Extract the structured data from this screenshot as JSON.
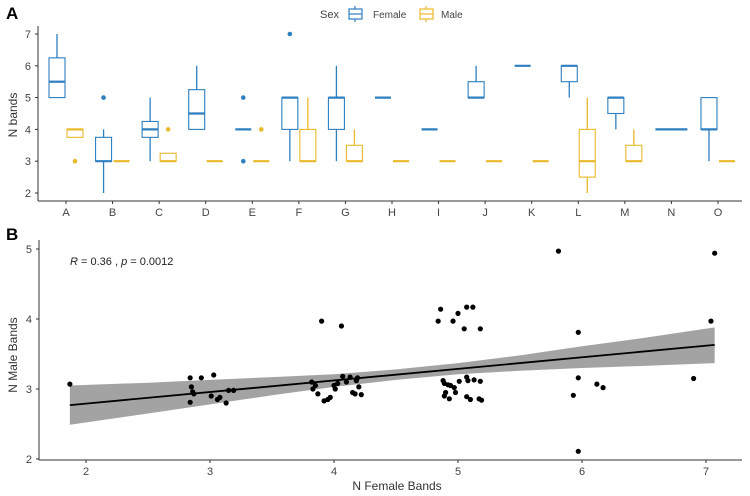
{
  "chart_data": [
    {
      "panel_label": "A",
      "type": "boxplot",
      "ylabel": "N bands",
      "xlabel": "",
      "ylim": [
        2,
        7
      ],
      "yticks": [
        "2",
        "3",
        "4",
        "5",
        "6",
        "7"
      ],
      "legend": {
        "title": "Sex",
        "placement": "top",
        "entries": [
          "Female",
          "Male"
        ]
      },
      "colors": {
        "Female": "#2e7fc0",
        "Male": "#e8b928"
      },
      "categories": [
        "A",
        "B",
        "C",
        "D",
        "E",
        "F",
        "G",
        "H",
        "I",
        "J",
        "K",
        "L",
        "M",
        "N",
        "O"
      ],
      "series": [
        {
          "name": "Female",
          "boxes": [
            {
              "min": 5,
              "q1": 5,
              "med": 5.5,
              "q3": 6.25,
              "max": 7,
              "out": []
            },
            {
              "min": 2,
              "q1": 3,
              "med": 3,
              "q3": 3.75,
              "max": 4,
              "out": [
                5
              ]
            },
            {
              "min": 3,
              "q1": 3.75,
              "med": 4,
              "q3": 4.25,
              "max": 5,
              "out": []
            },
            {
              "min": 4,
              "q1": 4,
              "med": 4.5,
              "q3": 5.25,
              "max": 6,
              "out": []
            },
            {
              "min": 4,
              "q1": 4,
              "med": 4,
              "q3": 4,
              "max": 4,
              "out": [
                5,
                3
              ]
            },
            {
              "min": 3,
              "q1": 4,
              "med": 5,
              "q3": 5,
              "max": 5,
              "out": [
                7
              ]
            },
            {
              "min": 3,
              "q1": 4,
              "med": 5,
              "q3": 5,
              "max": 6,
              "out": []
            },
            {
              "min": 5,
              "q1": 5,
              "med": 5,
              "q3": 5,
              "max": 5,
              "out": []
            },
            {
              "min": 4,
              "q1": 4,
              "med": 4,
              "q3": 4,
              "max": 4,
              "out": []
            },
            {
              "min": 5,
              "q1": 5,
              "med": 5,
              "q3": 5.5,
              "max": 6,
              "out": []
            },
            {
              "min": 6,
              "q1": 6,
              "med": 6,
              "q3": 6,
              "max": 6,
              "out": []
            },
            {
              "min": 5,
              "q1": 5.5,
              "med": 6,
              "q3": 6,
              "max": 6,
              "out": []
            },
            {
              "min": 4,
              "q1": 4.5,
              "med": 5,
              "q3": 5,
              "max": 5,
              "out": []
            },
            {
              "min": 4,
              "q1": 4,
              "med": 4,
              "q3": 4,
              "max": 4,
              "out": [],
              "full_width": true
            },
            {
              "min": 3,
              "q1": 4,
              "med": 4,
              "q3": 5,
              "max": 5,
              "out": []
            }
          ]
        },
        {
          "name": "Male",
          "boxes": [
            {
              "min": 3.75,
              "q1": 3.75,
              "med": 4,
              "q3": 4,
              "max": 4,
              "out": [
                3
              ]
            },
            {
              "min": 3,
              "q1": 3,
              "med": 3,
              "q3": 3,
              "max": 3,
              "out": []
            },
            {
              "min": 3,
              "q1": 3,
              "med": 3,
              "q3": 3.25,
              "max": 3.25,
              "out": [
                4
              ]
            },
            {
              "min": 3,
              "q1": 3,
              "med": 3,
              "q3": 3,
              "max": 3,
              "out": []
            },
            {
              "min": 3,
              "q1": 3,
              "med": 3,
              "q3": 3,
              "max": 3,
              "out": [
                4
              ]
            },
            {
              "min": 3,
              "q1": 3,
              "med": 3,
              "q3": 4,
              "max": 5,
              "out": []
            },
            {
              "min": 3,
              "q1": 3,
              "med": 3,
              "q3": 3.5,
              "max": 4,
              "out": []
            },
            {
              "min": 3,
              "q1": 3,
              "med": 3,
              "q3": 3,
              "max": 3,
              "out": []
            },
            {
              "min": 3,
              "q1": 3,
              "med": 3,
              "q3": 3,
              "max": 3,
              "out": []
            },
            {
              "min": 3,
              "q1": 3,
              "med": 3,
              "q3": 3,
              "max": 3,
              "out": []
            },
            {
              "min": 3,
              "q1": 3,
              "med": 3,
              "q3": 3,
              "max": 3,
              "out": []
            },
            {
              "min": 2,
              "q1": 2.5,
              "med": 3,
              "q3": 4,
              "max": 5,
              "out": []
            },
            {
              "min": 3,
              "q1": 3,
              "med": 3,
              "q3": 3.5,
              "max": 4,
              "out": []
            },
            null,
            {
              "min": 3,
              "q1": 3,
              "med": 3,
              "q3": 3,
              "max": 3,
              "out": []
            }
          ]
        }
      ]
    },
    {
      "panel_label": "B",
      "type": "scatter",
      "xlabel": "N Female Bands",
      "ylabel": "N Male Bands",
      "xlim": [
        1.7,
        7.3
      ],
      "ylim": [
        2,
        5.1
      ],
      "xticks": [
        "2",
        "3",
        "4",
        "5",
        "6",
        "7"
      ],
      "yticks": [
        "2",
        "3",
        "4",
        "5"
      ],
      "annotation": {
        "r_symbol": "R",
        "r_text": " = 0.36 , ",
        "p_symbol": "p",
        "p_text": " = 0.0012"
      },
      "point_color": "#000000",
      "band_color": "#999999",
      "points": [
        [
          1.87,
          3.07
        ],
        [
          2.84,
          3.16
        ],
        [
          2.84,
          2.81
        ],
        [
          2.85,
          3.03
        ],
        [
          2.86,
          2.96
        ],
        [
          2.87,
          2.93
        ],
        [
          2.93,
          3.16
        ],
        [
          3.03,
          3.2
        ],
        [
          3.01,
          2.9
        ],
        [
          3.06,
          2.85
        ],
        [
          3.08,
          2.88
        ],
        [
          3.13,
          2.8
        ],
        [
          3.15,
          2.98
        ],
        [
          3.19,
          2.98
        ],
        [
          3.9,
          3.97
        ],
        [
          4.06,
          3.9
        ],
        [
          3.82,
          3.1
        ],
        [
          3.85,
          3.05
        ],
        [
          3.83,
          3.0
        ],
        [
          3.87,
          2.93
        ],
        [
          3.92,
          2.83
        ],
        [
          3.95,
          2.85
        ],
        [
          3.97,
          2.88
        ],
        [
          4.0,
          3.05
        ],
        [
          4.01,
          3.0
        ],
        [
          4.03,
          3.08
        ],
        [
          4.07,
          3.18
        ],
        [
          4.1,
          3.1
        ],
        [
          4.13,
          3.17
        ],
        [
          4.15,
          2.95
        ],
        [
          4.17,
          2.93
        ],
        [
          4.18,
          3.12
        ],
        [
          4.2,
          3.03
        ],
        [
          4.22,
          2.92
        ],
        [
          4.19,
          3.16
        ],
        [
          4.86,
          4.14
        ],
        [
          4.84,
          3.97
        ],
        [
          4.96,
          3.97
        ],
        [
          5.0,
          4.08
        ],
        [
          5.07,
          4.17
        ],
        [
          5.12,
          4.17
        ],
        [
          5.05,
          3.86
        ],
        [
          5.18,
          3.86
        ],
        [
          4.88,
          3.12
        ],
        [
          4.89,
          3.08
        ],
        [
          4.92,
          3.06
        ],
        [
          4.94,
          3.05
        ],
        [
          4.97,
          3.02
        ],
        [
          4.98,
          2.95
        ],
        [
          4.9,
          2.95
        ],
        [
          4.89,
          2.9
        ],
        [
          4.93,
          2.86
        ],
        [
          5.01,
          3.11
        ],
        [
          5.07,
          3.17
        ],
        [
          5.08,
          3.12
        ],
        [
          5.13,
          3.13
        ],
        [
          5.18,
          3.11
        ],
        [
          5.07,
          2.89
        ],
        [
          5.1,
          2.85
        ],
        [
          5.17,
          2.86
        ],
        [
          5.19,
          2.84
        ],
        [
          5.81,
          4.97
        ],
        [
          5.97,
          3.81
        ],
        [
          5.97,
          3.16
        ],
        [
          5.93,
          2.91
        ],
        [
          6.12,
          3.07
        ],
        [
          6.17,
          3.02
        ],
        [
          5.97,
          2.11
        ],
        [
          7.07,
          4.94
        ],
        [
          7.04,
          3.97
        ],
        [
          6.9,
          3.15
        ]
      ],
      "fit": {
        "x": [
          1.87,
          7.07
        ],
        "y": [
          2.77,
          3.63
        ]
      },
      "ci_band": {
        "x": [
          1.87,
          2.5,
          3,
          3.5,
          4,
          4.5,
          5,
          5.5,
          6,
          6.5,
          7.07
        ],
        "lower": [
          2.49,
          2.65,
          2.78,
          2.91,
          3.03,
          3.13,
          3.21,
          3.26,
          3.3,
          3.33,
          3.37
        ],
        "upper": [
          3.05,
          3.09,
          3.13,
          3.17,
          3.21,
          3.28,
          3.37,
          3.48,
          3.61,
          3.73,
          3.88
        ]
      }
    }
  ]
}
